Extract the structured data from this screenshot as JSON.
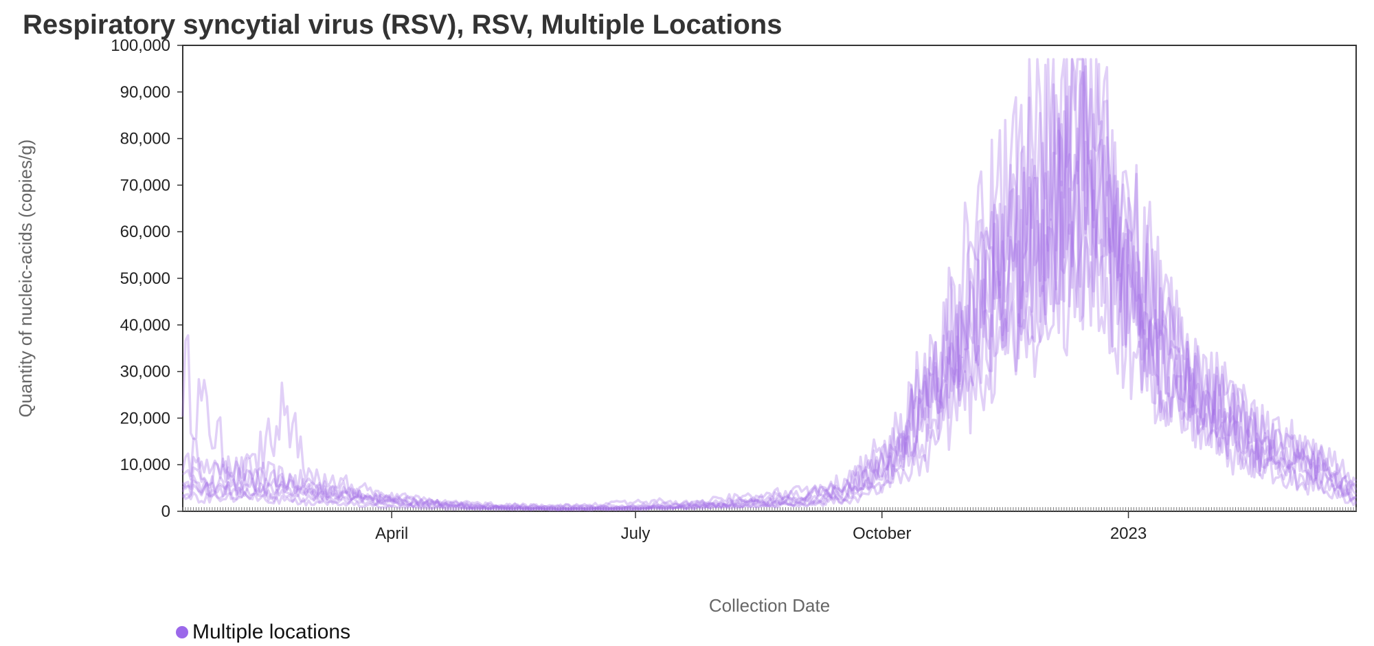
{
  "chart_data": {
    "type": "line",
    "title": "Respiratory syncytial virus (RSV), RSV, Multiple Locations",
    "xlabel": "Collection Date",
    "ylabel": "Quantity of nucleic-acids (copies/g)",
    "x_domain": [
      "2022-01-13",
      "2023-03-27"
    ],
    "ylim": [
      0,
      100000
    ],
    "y_ticks": [
      0,
      10000,
      20000,
      30000,
      40000,
      50000,
      60000,
      70000,
      80000,
      90000,
      100000
    ],
    "y_tick_labels": [
      "0",
      "10,000",
      "20,000",
      "30,000",
      "40,000",
      "50,000",
      "60,000",
      "70,000",
      "80,000",
      "90,000",
      "100,000"
    ],
    "x_ticks": [
      {
        "date": "2022-04-01",
        "label": "April"
      },
      {
        "date": "2022-07-01",
        "label": "July"
      },
      {
        "date": "2022-10-01",
        "label": "October"
      },
      {
        "date": "2023-01-01",
        "label": "2023"
      }
    ],
    "line_color": "#a36ee6",
    "grid": false,
    "legend": {
      "position": "bottom-left",
      "entries": [
        {
          "label": "Multiple locations",
          "color": "#9b68ea"
        }
      ]
    },
    "series": [
      {
        "x": [
          "2022-01-13",
          "2022-02-01",
          "2022-03-01",
          "2022-04-01",
          "2022-05-01",
          "2022-06-01",
          "2022-07-01",
          "2022-08-01",
          "2022-09-01",
          "2022-09-20",
          "2022-10-05",
          "2022-10-20",
          "2022-11-01",
          "2022-11-15",
          "2022-12-01",
          "2022-12-15",
          "2023-01-01",
          "2023-01-15",
          "2023-02-01",
          "2023-02-15",
          "2023-03-01",
          "2023-03-15",
          "2023-03-27"
        ],
        "values": [
          30000,
          9000,
          6000,
          3000,
          1500,
          1000,
          1200,
          1800,
          3500,
          7000,
          15000,
          30000,
          45000,
          60000,
          72000,
          85000,
          55000,
          35000,
          22000,
          15000,
          12000,
          8000,
          2500
        ]
      },
      {
        "x": [
          "2022-01-13",
          "2022-02-01",
          "2022-03-01",
          "2022-04-01",
          "2022-05-01",
          "2022-06-01",
          "2022-07-01",
          "2022-08-01",
          "2022-09-01",
          "2022-09-20",
          "2022-10-05",
          "2022-10-20",
          "2022-11-01",
          "2022-11-15",
          "2022-12-01",
          "2022-12-15",
          "2023-01-01",
          "2023-01-15",
          "2023-02-01",
          "2023-02-15",
          "2023-03-01",
          "2023-03-15",
          "2023-03-27"
        ],
        "values": [
          12000,
          8000,
          5000,
          2500,
          1000,
          800,
          900,
          1500,
          2500,
          5000,
          12000,
          28000,
          42000,
          55000,
          68000,
          80000,
          60000,
          40000,
          28000,
          20000,
          15000,
          10000,
          4000
        ]
      },
      {
        "x": [
          "2022-01-13",
          "2022-02-01",
          "2022-03-01",
          "2022-04-01",
          "2022-05-01",
          "2022-06-01",
          "2022-07-01",
          "2022-08-01",
          "2022-09-01",
          "2022-09-20",
          "2022-10-05",
          "2022-10-20",
          "2022-11-01",
          "2022-11-15",
          "2022-12-01",
          "2022-12-15",
          "2023-01-01",
          "2023-01-15",
          "2023-02-01",
          "2023-02-15",
          "2023-03-01",
          "2023-03-15",
          "2023-03-27"
        ],
        "values": [
          7000,
          6000,
          4000,
          2000,
          800,
          500,
          700,
          1200,
          2000,
          4000,
          9000,
          22000,
          35000,
          48000,
          58000,
          70000,
          48000,
          30000,
          20000,
          14000,
          10000,
          7000,
          3000
        ]
      },
      {
        "x": [
          "2022-01-13",
          "2022-02-01",
          "2022-03-01",
          "2022-04-01",
          "2022-05-01",
          "2022-06-01",
          "2022-07-01",
          "2022-08-01",
          "2022-09-01",
          "2022-09-20",
          "2022-10-05",
          "2022-10-20",
          "2022-11-01",
          "2022-11-15",
          "2022-12-01",
          "2022-12-15",
          "2023-01-01",
          "2023-01-15",
          "2023-02-01",
          "2023-02-15",
          "2023-03-01",
          "2023-03-15",
          "2023-03-27"
        ],
        "values": [
          5000,
          4000,
          3000,
          1500,
          600,
          400,
          500,
          1000,
          1500,
          3000,
          8000,
          18000,
          30000,
          40000,
          50000,
          62000,
          42000,
          28000,
          18000,
          12000,
          8000,
          6000,
          2000
        ]
      },
      {
        "x": [
          "2022-01-13",
          "2022-02-01",
          "2022-03-01",
          "2022-04-01",
          "2022-05-01",
          "2022-06-01",
          "2022-07-01",
          "2022-08-01",
          "2022-09-01",
          "2022-09-20",
          "2022-10-05",
          "2022-10-20",
          "2022-11-01",
          "2022-11-15",
          "2022-12-01",
          "2022-12-15",
          "2023-01-01",
          "2023-01-15",
          "2023-02-01",
          "2023-02-15",
          "2023-03-01",
          "2023-03-15",
          "2023-03-27"
        ],
        "values": [
          9000,
          7000,
          4500,
          2500,
          1200,
          700,
          800,
          1400,
          2800,
          6000,
          14000,
          32000,
          48000,
          62000,
          75000,
          78000,
          52000,
          34000,
          24000,
          18000,
          14000,
          9000,
          5000
        ]
      },
      {
        "x": [
          "2022-01-13",
          "2022-02-01",
          "2022-02-20",
          "2022-03-01",
          "2022-04-01",
          "2022-05-01",
          "2022-06-01",
          "2022-07-01",
          "2022-08-01",
          "2022-09-01",
          "2022-09-20",
          "2022-10-05",
          "2022-10-20",
          "2022-11-01",
          "2022-11-15",
          "2022-12-01",
          "2022-12-15",
          "2023-01-01",
          "2023-01-15",
          "2023-02-01",
          "2023-02-15",
          "2023-03-01",
          "2023-03-15",
          "2023-03-27"
        ],
        "values": [
          4000,
          5000,
          21000,
          8000,
          3000,
          1500,
          1000,
          1800,
          2500,
          4000,
          6500,
          13000,
          25000,
          40000,
          52000,
          60000,
          70000,
          45000,
          30000,
          22000,
          16000,
          12000,
          8000,
          4500
        ]
      },
      {
        "x": [
          "2022-01-13",
          "2022-02-01",
          "2022-03-01",
          "2022-04-01",
          "2022-05-01",
          "2022-06-01",
          "2022-07-01",
          "2022-08-01",
          "2022-09-01",
          "2022-09-20",
          "2022-10-05",
          "2022-10-20",
          "2022-11-01",
          "2022-11-15",
          "2022-12-01",
          "2022-12-15",
          "2023-01-01",
          "2023-01-15",
          "2023-02-01",
          "2023-02-15",
          "2023-03-01",
          "2023-03-15",
          "2023-03-27"
        ],
        "values": [
          3000,
          3000,
          2000,
          1000,
          500,
          300,
          400,
          900,
          1500,
          2500,
          6000,
          15000,
          26000,
          36000,
          46000,
          55000,
          38000,
          25000,
          16000,
          11000,
          7000,
          5000,
          1500
        ]
      },
      {
        "x": [
          "2022-01-13",
          "2022-02-01",
          "2022-03-01",
          "2022-04-01",
          "2022-05-01",
          "2022-06-01",
          "2022-07-01",
          "2022-08-01",
          "2022-09-01",
          "2022-09-20",
          "2022-10-05",
          "2022-10-20",
          "2022-11-01",
          "2022-11-15",
          "2022-12-01",
          "2022-12-15",
          "2023-01-01",
          "2023-01-15",
          "2023-02-01",
          "2023-02-15",
          "2023-03-01",
          "2023-03-15",
          "2023-03-27"
        ],
        "values": [
          6000,
          5000,
          3500,
          2000,
          1000,
          600,
          700,
          1300,
          2200,
          4500,
          11000,
          25000,
          38000,
          50000,
          62000,
          88000,
          60000,
          38000,
          26000,
          19000,
          15000,
          11000,
          6000
        ]
      }
    ]
  }
}
